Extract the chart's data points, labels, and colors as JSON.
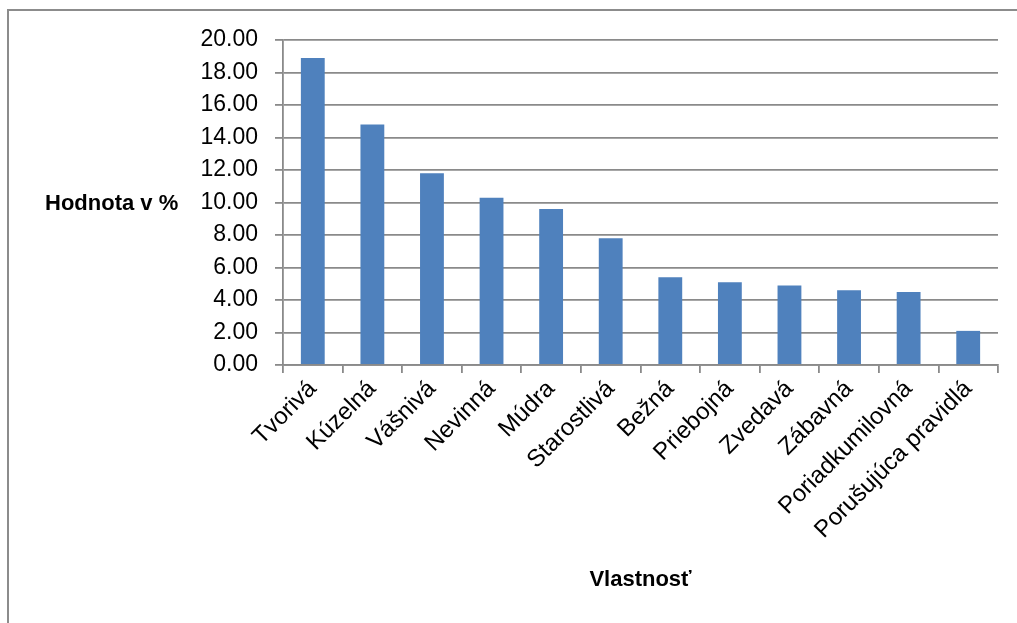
{
  "chart_data": {
    "type": "bar",
    "xlabel": "Vlastnosť",
    "ylabel": "Hodnota v %",
    "categories": [
      "Tvorivá",
      "Kúzelná",
      "Vášnivá",
      "Nevinná",
      "Múdra",
      "Starostlivá",
      "Bežná",
      "Priebojná",
      "Zvedavá",
      "Zábavná",
      "Poriadkumilovná",
      "Porušujúca pravidlá"
    ],
    "values": [
      18.9,
      14.8,
      11.8,
      10.3,
      9.6,
      7.8,
      5.4,
      5.1,
      4.9,
      4.6,
      4.5,
      2.1
    ],
    "color": "#4f81bd",
    "ylim": [
      0,
      20
    ],
    "yticks": [
      {
        "value": 0,
        "label": "0.00"
      },
      {
        "value": 2,
        "label": "2.00"
      },
      {
        "value": 4,
        "label": "4.00"
      },
      {
        "value": 6,
        "label": "6.00"
      },
      {
        "value": 8,
        "label": "8.00"
      },
      {
        "value": 10,
        "label": "10.00"
      },
      {
        "value": 12,
        "label": "12.00"
      },
      {
        "value": 14,
        "label": "14.00"
      },
      {
        "value": 16,
        "label": "16.00"
      },
      {
        "value": 18,
        "label": "18.00"
      },
      {
        "value": 20,
        "label": "20.00"
      }
    ],
    "grid": "y"
  }
}
